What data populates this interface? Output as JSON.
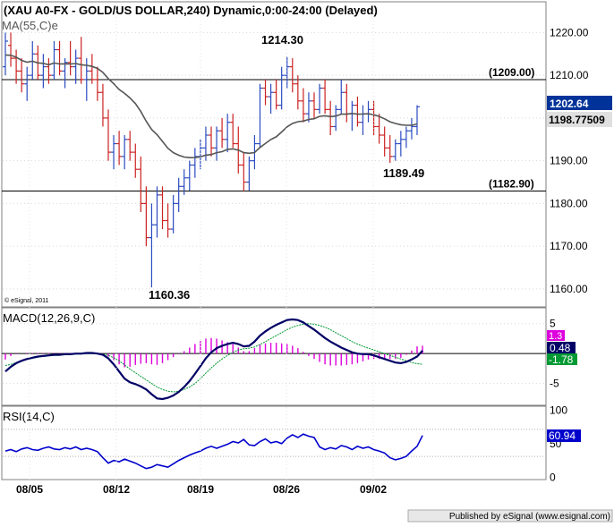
{
  "chart_data": [
    {
      "type": "line",
      "title": "(XAU A0-FX - GOLD/US DOLLAR,240) Dynamic,0:00-24:00 (Delayed)",
      "indicator_label": "MA(55,C)e",
      "copyright": "© eSignal, 2011",
      "y_ticks": [
        "1220.00",
        "1210.00",
        "1200.00",
        "1190.00",
        "1180.00",
        "1170.00",
        "1160.00"
      ],
      "ylim": [
        1156,
        1227
      ],
      "price_label": "1202.64",
      "ma_label": "1198.77509",
      "hlines": [
        {
          "value": 1209.0,
          "label": "(1209.00)"
        },
        {
          "value": 1182.9,
          "label": "(1182.90)"
        }
      ],
      "annotations": [
        "1214.30",
        "1189.49",
        "1160.36"
      ],
      "colors": {
        "up": "#2b4bc0",
        "down": "#cc2222",
        "ma": "#555555",
        "price_tag": "#003399"
      },
      "series": [
        {
          "values": [
            {
              "o": 1212,
              "h": 1220,
              "l": 1210,
              "c": 1218
            },
            {
              "o": 1217,
              "h": 1220,
              "l": 1212,
              "c": 1214
            },
            {
              "o": 1214,
              "h": 1216,
              "l": 1208,
              "c": 1211
            },
            {
              "o": 1211,
              "h": 1214,
              "l": 1206,
              "c": 1208
            },
            {
              "o": 1208,
              "h": 1212,
              "l": 1204,
              "c": 1210
            },
            {
              "o": 1210,
              "h": 1218,
              "l": 1209,
              "c": 1215
            },
            {
              "o": 1215,
              "h": 1217,
              "l": 1209,
              "c": 1210
            },
            {
              "o": 1210,
              "h": 1215,
              "l": 1207,
              "c": 1212
            },
            {
              "o": 1212,
              "h": 1214,
              "l": 1208,
              "c": 1210
            },
            {
              "o": 1210,
              "h": 1218,
              "l": 1209,
              "c": 1216
            },
            {
              "o": 1216,
              "h": 1218,
              "l": 1210,
              "c": 1211
            },
            {
              "o": 1211,
              "h": 1214,
              "l": 1207,
              "c": 1213
            },
            {
              "o": 1213,
              "h": 1218,
              "l": 1210,
              "c": 1212
            },
            {
              "o": 1212,
              "h": 1216,
              "l": 1208,
              "c": 1214
            },
            {
              "o": 1214,
              "h": 1219,
              "l": 1208,
              "c": 1209
            },
            {
              "o": 1209,
              "h": 1214,
              "l": 1204,
              "c": 1211
            },
            {
              "o": 1211,
              "h": 1215,
              "l": 1208,
              "c": 1209
            },
            {
              "o": 1209,
              "h": 1212,
              "l": 1204,
              "c": 1206
            },
            {
              "o": 1206,
              "h": 1208,
              "l": 1198,
              "c": 1200
            },
            {
              "o": 1200,
              "h": 1202,
              "l": 1190,
              "c": 1192
            },
            {
              "o": 1192,
              "h": 1196,
              "l": 1188,
              "c": 1194
            },
            {
              "o": 1194,
              "h": 1197,
              "l": 1189,
              "c": 1191
            },
            {
              "o": 1191,
              "h": 1196,
              "l": 1188,
              "c": 1195
            },
            {
              "o": 1195,
              "h": 1197,
              "l": 1190,
              "c": 1192
            },
            {
              "o": 1192,
              "h": 1194,
              "l": 1186,
              "c": 1188
            },
            {
              "o": 1188,
              "h": 1191,
              "l": 1178,
              "c": 1180
            },
            {
              "o": 1180,
              "h": 1184,
              "l": 1170,
              "c": 1172
            },
            {
              "o": 1172,
              "h": 1180,
              "l": 1160.36,
              "c": 1175
            },
            {
              "o": 1175,
              "h": 1184,
              "l": 1172,
              "c": 1182
            },
            {
              "o": 1182,
              "h": 1184,
              "l": 1174,
              "c": 1176
            },
            {
              "o": 1176,
              "h": 1180,
              "l": 1172,
              "c": 1174
            },
            {
              "o": 1174,
              "h": 1182,
              "l": 1173,
              "c": 1180
            },
            {
              "o": 1180,
              "h": 1186,
              "l": 1178,
              "c": 1184
            },
            {
              "o": 1184,
              "h": 1188,
              "l": 1182,
              "c": 1186
            },
            {
              "o": 1186,
              "h": 1190,
              "l": 1183,
              "c": 1189
            },
            {
              "o": 1189,
              "h": 1193,
              "l": 1186,
              "c": 1191
            },
            {
              "o": 1191,
              "h": 1195,
              "l": 1188,
              "c": 1193
            },
            {
              "o": 1193,
              "h": 1198,
              "l": 1190,
              "c": 1196
            },
            {
              "o": 1196,
              "h": 1198,
              "l": 1191,
              "c": 1193
            },
            {
              "o": 1193,
              "h": 1198,
              "l": 1190,
              "c": 1197
            },
            {
              "o": 1197,
              "h": 1200,
              "l": 1193,
              "c": 1195
            },
            {
              "o": 1195,
              "h": 1201,
              "l": 1192,
              "c": 1199
            },
            {
              "o": 1199,
              "h": 1201,
              "l": 1193,
              "c": 1194
            },
            {
              "o": 1194,
              "h": 1198,
              "l": 1187,
              "c": 1189
            },
            {
              "o": 1189,
              "h": 1192,
              "l": 1182.9,
              "c": 1185
            },
            {
              "o": 1185,
              "h": 1191,
              "l": 1183,
              "c": 1190
            },
            {
              "o": 1190,
              "h": 1196,
              "l": 1188,
              "c": 1194
            },
            {
              "o": 1194,
              "h": 1208,
              "l": 1193,
              "c": 1207
            },
            {
              "o": 1207,
              "h": 1209,
              "l": 1203,
              "c": 1205
            },
            {
              "o": 1205,
              "h": 1208,
              "l": 1201,
              "c": 1206
            },
            {
              "o": 1206,
              "h": 1209,
              "l": 1202,
              "c": 1203
            },
            {
              "o": 1203,
              "h": 1212,
              "l": 1202,
              "c": 1210
            },
            {
              "o": 1210,
              "h": 1214.3,
              "l": 1207,
              "c": 1212
            },
            {
              "o": 1212,
              "h": 1214,
              "l": 1206,
              "c": 1208
            },
            {
              "o": 1208,
              "h": 1210,
              "l": 1202,
              "c": 1204
            },
            {
              "o": 1204,
              "h": 1207,
              "l": 1199,
              "c": 1201
            },
            {
              "o": 1201,
              "h": 1206,
              "l": 1199,
              "c": 1204
            },
            {
              "o": 1204,
              "h": 1206,
              "l": 1200,
              "c": 1202
            },
            {
              "o": 1202,
              "h": 1208,
              "l": 1201,
              "c": 1207
            },
            {
              "o": 1207,
              "h": 1209,
              "l": 1201,
              "c": 1202
            },
            {
              "o": 1202,
              "h": 1204,
              "l": 1196,
              "c": 1198
            },
            {
              "o": 1198,
              "h": 1203,
              "l": 1197,
              "c": 1202
            },
            {
              "o": 1202,
              "h": 1209,
              "l": 1201,
              "c": 1206
            },
            {
              "o": 1206,
              "h": 1208,
              "l": 1199,
              "c": 1201
            },
            {
              "o": 1201,
              "h": 1204,
              "l": 1197,
              "c": 1203
            },
            {
              "o": 1203,
              "h": 1205,
              "l": 1198,
              "c": 1199
            },
            {
              "o": 1199,
              "h": 1203,
              "l": 1196,
              "c": 1201
            },
            {
              "o": 1201,
              "h": 1204,
              "l": 1199,
              "c": 1202
            },
            {
              "o": 1202,
              "h": 1204,
              "l": 1196,
              "c": 1198
            },
            {
              "o": 1198,
              "h": 1201,
              "l": 1194,
              "c": 1196
            },
            {
              "o": 1196,
              "h": 1198,
              "l": 1191,
              "c": 1193
            },
            {
              "o": 1193,
              "h": 1196,
              "l": 1189.49,
              "c": 1191
            },
            {
              "o": 1191,
              "h": 1195,
              "l": 1190,
              "c": 1194
            },
            {
              "o": 1194,
              "h": 1197,
              "l": 1191,
              "c": 1195
            },
            {
              "o": 1195,
              "h": 1198,
              "l": 1193,
              "c": 1197
            },
            {
              "o": 1197,
              "h": 1200,
              "l": 1195,
              "c": 1198
            },
            {
              "o": 1198,
              "h": 1203,
              "l": 1196,
              "c": 1202.64
            }
          ]
        }
      ]
    },
    {
      "type": "bar",
      "title": "MACD(12,26,9,C)",
      "y_ticks": [
        "5",
        "0",
        "-5"
      ],
      "ylim": [
        -8.5,
        7.5
      ],
      "labels": {
        "hist": "1.3",
        "macd": "0.48",
        "signal": "-1.78"
      },
      "colors": {
        "hist": "#dd00dd",
        "macd": "#000066",
        "signal": "#009933"
      },
      "series": [
        {
          "values": [
            -3,
            -2.2,
            -1.6,
            -1.2,
            -0.9,
            -0.7,
            -0.5,
            -0.4,
            -0.3,
            -0.2,
            -0.2,
            -0.1,
            -0.1,
            0,
            0,
            0.1,
            0.1,
            0,
            -0.2,
            -0.8,
            -1.8,
            -3,
            -4.2,
            -4.8,
            -5.1,
            -5.5,
            -6,
            -6.8,
            -7.5,
            -7.6,
            -7.4,
            -7,
            -6.4,
            -5.6,
            -4.6,
            -3.4,
            -2.1,
            -0.8,
            0.2,
            0.9,
            1.3,
            1.6,
            1.8,
            1.6,
            1.2,
            1.3,
            2,
            3,
            3.7,
            4.3,
            4.8,
            5.2,
            5.6,
            5.7,
            5.6,
            5.2,
            4.6,
            4,
            3.3,
            2.6,
            2,
            1.5,
            1,
            0.6,
            0.2,
            0,
            -0.1,
            -0.1,
            -0.3,
            -0.6,
            -0.9,
            -1.2,
            -1.5,
            -1.6,
            -1.4,
            -1,
            -0.5,
            0.48
          ]
        },
        {
          "values": [
            -2,
            -1.8,
            -1.5,
            -1.2,
            -1,
            -0.8,
            -0.6,
            -0.5,
            -0.4,
            -0.3,
            -0.3,
            -0.2,
            -0.2,
            -0.1,
            -0.1,
            0,
            0,
            0,
            -0.1,
            -0.3,
            -0.7,
            -1.2,
            -1.9,
            -2.6,
            -3.2,
            -3.8,
            -4.4,
            -5,
            -5.6,
            -6,
            -6.3,
            -6.4,
            -6.3,
            -6,
            -5.6,
            -5,
            -4.2,
            -3.3,
            -2.4,
            -1.6,
            -0.9,
            -0.3,
            0.2,
            0.6,
            0.8,
            0.9,
            1.1,
            1.5,
            2,
            2.5,
            3,
            3.5,
            4,
            4.4,
            4.7,
            4.9,
            5,
            4.9,
            4.7,
            4.4,
            4,
            3.5,
            3,
            2.5,
            2,
            1.6,
            1.2,
            0.9,
            0.6,
            0.3,
            0,
            -0.3,
            -0.6,
            -0.9,
            -1.2,
            -1.5,
            -1.7,
            -1.78
          ]
        },
        {
          "values": [
            -1,
            -0.4,
            -0.1,
            0,
            0.1,
            0.1,
            0.1,
            0.1,
            0.1,
            0.1,
            0.1,
            0.1,
            0.1,
            0.1,
            0.1,
            0.1,
            0.1,
            0,
            -0.1,
            -0.5,
            -1.1,
            -1.8,
            -2.3,
            -2.2,
            -1.9,
            -1.7,
            -1.6,
            -1.8,
            -1.9,
            -1.6,
            -1.1,
            -0.6,
            -0.1,
            0.4,
            1,
            1.6,
            2.1,
            2.5,
            2.6,
            2.5,
            2.2,
            1.9,
            1.6,
            1,
            0.4,
            0.4,
            0.9,
            1.5,
            1.7,
            1.8,
            1.8,
            1.7,
            1.6,
            1.3,
            0.9,
            0.3,
            -0.4,
            -0.9,
            -1.4,
            -1.8,
            -2,
            -2,
            -2,
            -1.9,
            -1.8,
            -1.6,
            -1.3,
            -1,
            -0.9,
            -0.9,
            -0.9,
            -0.9,
            -0.9,
            -0.7,
            -0.2,
            0.5,
            1.2,
            1.3
          ]
        }
      ]
    },
    {
      "type": "line",
      "title": "RSI(14,C)",
      "y_ticks": [
        "100",
        "50",
        "0"
      ],
      "ylim": [
        -3,
        103
      ],
      "rsi_label": "60.94",
      "colors": {
        "rsi": "#0000cc"
      },
      "series": [
        {
          "values": [
            38,
            40,
            37,
            41,
            43,
            40,
            39,
            42,
            44,
            41,
            40,
            43,
            41,
            44,
            40,
            42,
            40,
            37,
            28,
            20,
            24,
            22,
            26,
            23,
            20,
            16,
            12,
            14,
            18,
            16,
            14,
            19,
            24,
            28,
            32,
            35,
            38,
            42,
            45,
            42,
            45,
            48,
            52,
            50,
            55,
            47,
            46,
            52,
            56,
            50,
            52,
            49,
            57,
            62,
            58,
            63,
            60,
            58,
            44,
            40,
            43,
            41,
            46,
            44,
            40,
            45,
            42,
            44,
            40,
            38,
            35,
            28,
            25,
            27,
            30,
            38,
            45,
            60.94
          ]
        }
      ]
    }
  ],
  "x_ticks": [
    "08/05",
    "08/12",
    "08/19",
    "08/26",
    "09/02"
  ],
  "footer": "Published by eSignal (www.esignal.com)"
}
